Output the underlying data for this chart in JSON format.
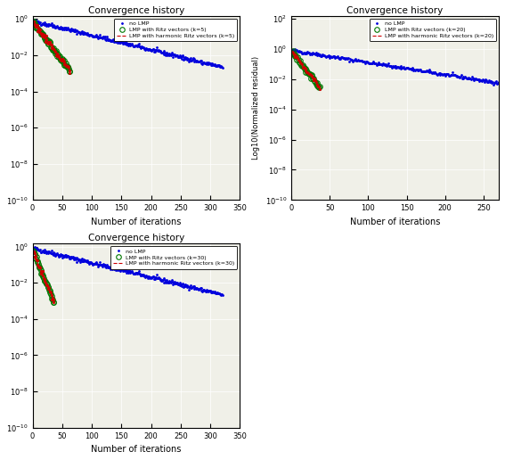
{
  "title": "Convergence history",
  "xlabel": "Number of iterations",
  "ylabel_right": "Log10(Normalized residual)",
  "plots": [
    {
      "k": 5,
      "no_lmp_iters": 320,
      "lmp_iters": 63,
      "xlim": [
        0,
        350
      ],
      "ylim_lo": 1e-10,
      "ylim_hi": 1.5,
      "xticks": [
        0,
        50,
        100,
        150,
        200,
        250,
        300,
        350
      ]
    },
    {
      "k": 20,
      "no_lmp_iters": 270,
      "lmp_iters": 37,
      "xlim": [
        0,
        270
      ],
      "ylim_lo": 1e-10,
      "ylim_hi": 150,
      "xticks": [
        0,
        50,
        100,
        150,
        200,
        250
      ]
    },
    {
      "k": 30,
      "no_lmp_iters": 320,
      "lmp_iters": 36,
      "xlim": [
        0,
        350
      ],
      "ylim_lo": 1e-10,
      "ylim_hi": 1.5,
      "xticks": [
        0,
        50,
        100,
        150,
        200,
        250,
        300,
        350
      ]
    }
  ],
  "colors": {
    "no_lmp": "#0000dd",
    "lmp_ritz": "#007700",
    "lmp_harmonic": "#cc0000"
  },
  "bg_color": "#f0f0e8"
}
